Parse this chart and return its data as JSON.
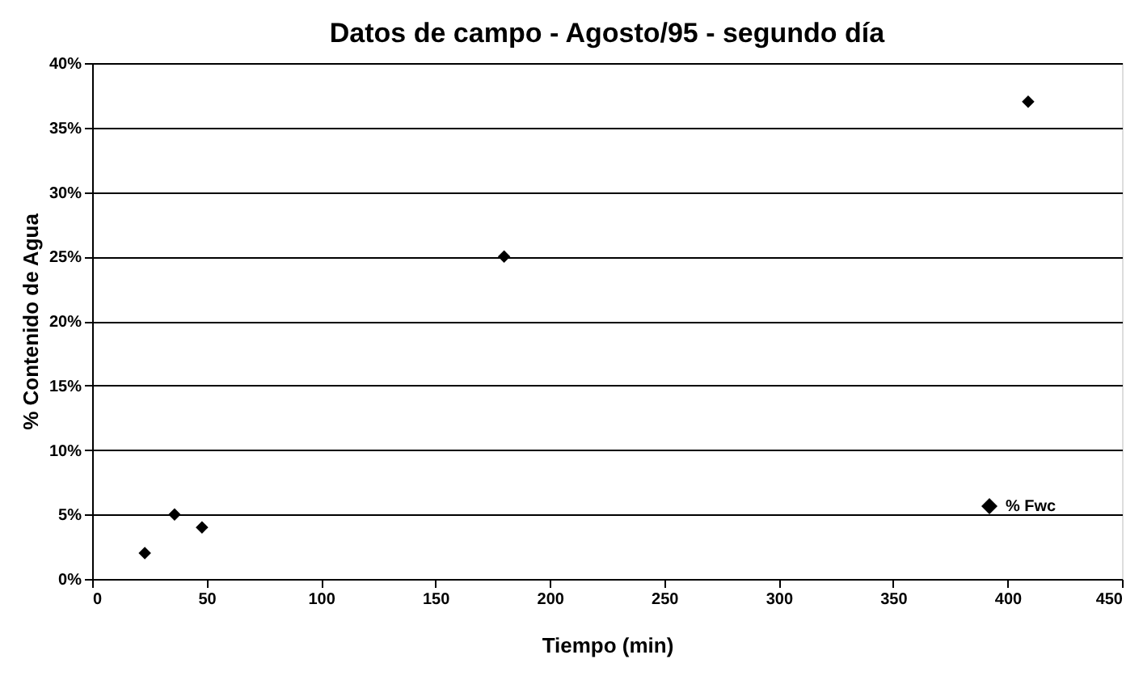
{
  "chart_data": {
    "type": "scatter",
    "title": "Datos de campo - Agosto/95 - segundo día",
    "xlabel": "Tiempo (min)",
    "ylabel": "% Contenido de Agua",
    "x": [
      23,
      36,
      48,
      180,
      409
    ],
    "series": [
      {
        "name": "% Fwc",
        "color": "#000000",
        "values": [
          2,
          5,
          4,
          25,
          37
        ]
      }
    ],
    "xlim": [
      0,
      450
    ],
    "xticks": [
      0,
      50,
      100,
      150,
      200,
      250,
      300,
      350,
      400,
      450
    ],
    "ylim": [
      0,
      40
    ],
    "yticks": [
      {
        "value": 0,
        "label": "0%"
      },
      {
        "value": 5,
        "label": "5%"
      },
      {
        "value": 10,
        "label": "10%"
      },
      {
        "value": 15,
        "label": "15%"
      },
      {
        "value": 20,
        "label": "20%"
      },
      {
        "value": 25,
        "label": "25%"
      },
      {
        "value": 30,
        "label": "30%"
      },
      {
        "value": 35,
        "label": "35%"
      },
      {
        "value": 40,
        "label": "40%"
      }
    ],
    "grid": "y",
    "legend": "bottom right",
    "marker": "diamond"
  }
}
